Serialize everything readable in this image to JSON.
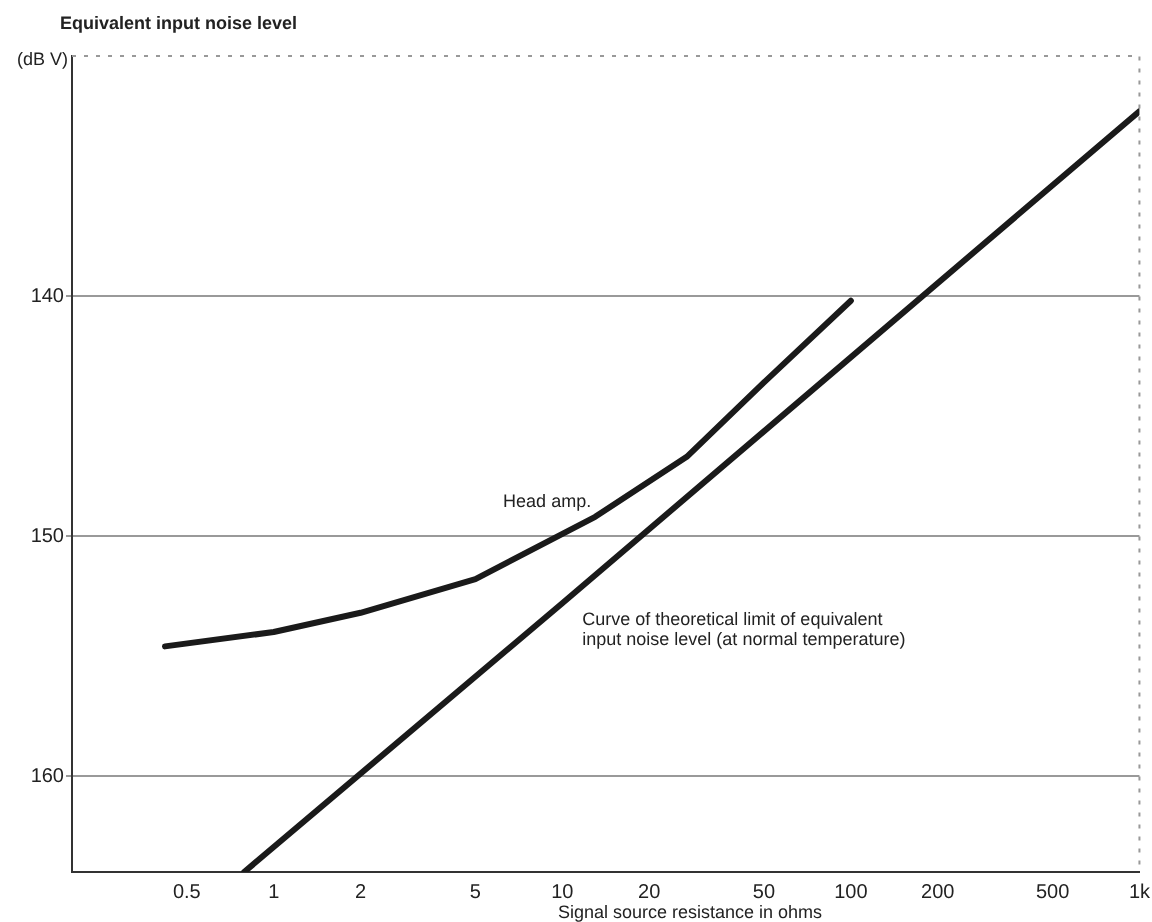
{
  "chart_data": {
    "type": "line",
    "ylabel": "Equivalent input noise level",
    "xlabel": "Signal source resistance in ohms",
    "annotations": [
      "(dB V)"
    ],
    "log": "x",
    "xlim": [
      0.2,
      1000
    ],
    "xticks": [
      0.5,
      1,
      2,
      5,
      10,
      20,
      50,
      100,
      200,
      500,
      {
        "value": 1000,
        "label": "1k"
      }
    ],
    "ylim": [
      164,
      130
    ],
    "yticks": [
      140,
      150,
      160
    ],
    "grid": "y",
    "legend": false,
    "marker": "none",
    "line_style": "solid",
    "series": [
      {
        "name": "Head amp.",
        "color": "#1a1a1a",
        "x": [
          0.42,
          1,
          2,
          5,
          13,
          27,
          50,
          100
        ],
        "values": [
          154.6,
          154,
          153.2,
          151.8,
          149.2,
          146.7,
          143.6,
          140.2
        ]
      },
      {
        "name": "Curve of theoretical limit of equivalent input noise level (at normal temperature)",
        "color": "#1a1a1a",
        "x": [
          0.79,
          10,
          1000
        ],
        "values": [
          164,
          152.8,
          132.3
        ]
      }
    ]
  }
}
